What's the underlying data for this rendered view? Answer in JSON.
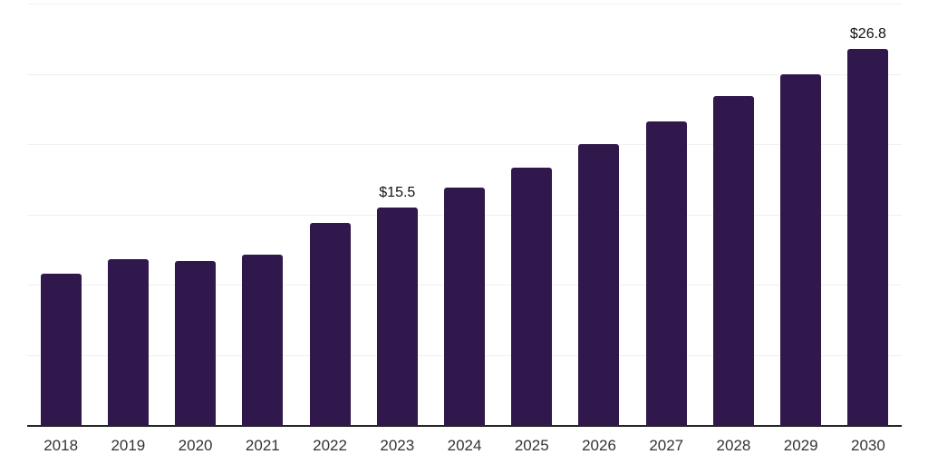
{
  "chart": {
    "colors": {
      "background": "#ffffff",
      "bar": "#30174c",
      "gridline": "#f0f0f0",
      "axis_line": "#262626",
      "x_label": "#333333",
      "value_label": "#111111"
    }
  },
  "chart_data": {
    "type": "bar",
    "categories": [
      "2018",
      "2019",
      "2020",
      "2021",
      "2022",
      "2023",
      "2024",
      "2025",
      "2026",
      "2027",
      "2028",
      "2029",
      "2030"
    ],
    "values": [
      10.8,
      11.8,
      11.7,
      12.1,
      14.4,
      15.5,
      16.9,
      18.3,
      20.0,
      21.6,
      23.4,
      25.0,
      26.8
    ],
    "annotations": [
      {
        "category": "2023",
        "text": "$15.5"
      },
      {
        "category": "2030",
        "text": "$26.8"
      }
    ],
    "title": "",
    "xlabel": "",
    "ylabel": "",
    "ylim": [
      0,
      30
    ],
    "gridline_values": [
      5,
      10,
      15,
      20,
      25,
      30
    ],
    "grid": "horizontal",
    "legend": "none"
  }
}
